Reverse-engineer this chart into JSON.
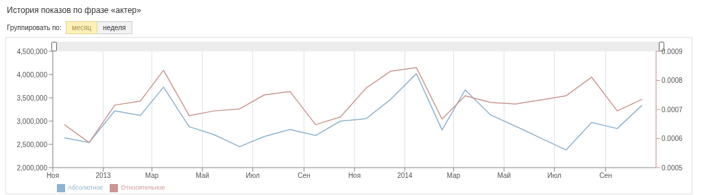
{
  "chart_data": {
    "type": "line",
    "title": "История показов по фразе «актер»",
    "annotations": [
      "Группировать по:",
      "месяц",
      "неделя"
    ],
    "x": [
      "2012-11-15",
      "2012-12-15",
      "2013-01-15",
      "2013-02-15",
      "2013-03-15",
      "2013-04-15",
      "2013-05-15",
      "2013-06-15",
      "2013-07-15",
      "2013-08-15",
      "2013-09-15",
      "2013-10-15",
      "2013-11-15",
      "2013-12-15",
      "2014-01-15",
      "2014-02-15",
      "2014-03-15",
      "2014-04-15",
      "2014-05-15",
      "2014-06-15",
      "2014-07-15",
      "2014-08-15",
      "2014-09-15",
      "2014-10-15"
    ],
    "series": [
      {
        "name": "Абсолютное",
        "color": "#8fb3cf",
        "values": [
          2640000,
          2540000,
          3220000,
          3120000,
          3730000,
          2880000,
          2710000,
          2450000,
          2670000,
          2820000,
          2690000,
          3000000,
          3050000,
          3470000,
          4020000,
          2810000,
          3670000,
          3130000,
          2890000,
          2630000,
          2380000,
          2970000,
          2840000,
          3340000
        ]
      },
      {
        "name": "Относительное",
        "color": "#cc9790",
        "axis": "y2",
        "values": [
          0.000648,
          0.000586,
          0.000715,
          0.000729,
          0.000835,
          0.000679,
          0.000695,
          0.000702,
          0.00075,
          0.000762,
          0.000648,
          0.000674,
          0.000773,
          0.000832,
          0.000844,
          0.000667,
          0.000747,
          0.000724,
          0.000719,
          0.000733,
          0.000747,
          0.000811,
          0.000695,
          0.000735
        ]
      }
    ],
    "xlim": [
      "2012-11-01",
      "2014-11-01"
    ],
    "xticks": [
      {
        "value": "2012-11-01",
        "label": "Ноя"
      },
      {
        "value": "2013-01-01",
        "label": "2013"
      },
      {
        "value": "2013-03-01",
        "label": "Мар"
      },
      {
        "value": "2013-05-01",
        "label": "Май"
      },
      {
        "value": "2013-07-01",
        "label": "Июл"
      },
      {
        "value": "2013-09-01",
        "label": "Сен"
      },
      {
        "value": "2013-11-01",
        "label": "Ноя"
      },
      {
        "value": "2014-01-01",
        "label": "2014"
      },
      {
        "value": "2014-03-01",
        "label": "Мар"
      },
      {
        "value": "2014-05-01",
        "label": "Май"
      },
      {
        "value": "2014-07-01",
        "label": "Июл"
      },
      {
        "value": "2014-09-01",
        "label": "Сен"
      }
    ],
    "ylim": [
      2000000,
      4500000
    ],
    "yticks": [
      {
        "value": 2000000,
        "label": "2,000,000"
      },
      {
        "value": 2500000,
        "label": "2,500,000"
      },
      {
        "value": 3000000,
        "label": "3,000,000"
      },
      {
        "value": 3500000,
        "label": "3,500,000"
      },
      {
        "value": 4000000,
        "label": "4,000,000"
      },
      {
        "value": 4500000,
        "label": "4,500,000"
      }
    ],
    "y2lim": [
      0.0005,
      0.0009
    ],
    "y2ticks": [
      0.0005,
      0.0006,
      0.0007,
      0.0008,
      0.0009
    ],
    "grid": "x",
    "legend": "bottom left",
    "marker": "none",
    "line_style": "solid"
  }
}
